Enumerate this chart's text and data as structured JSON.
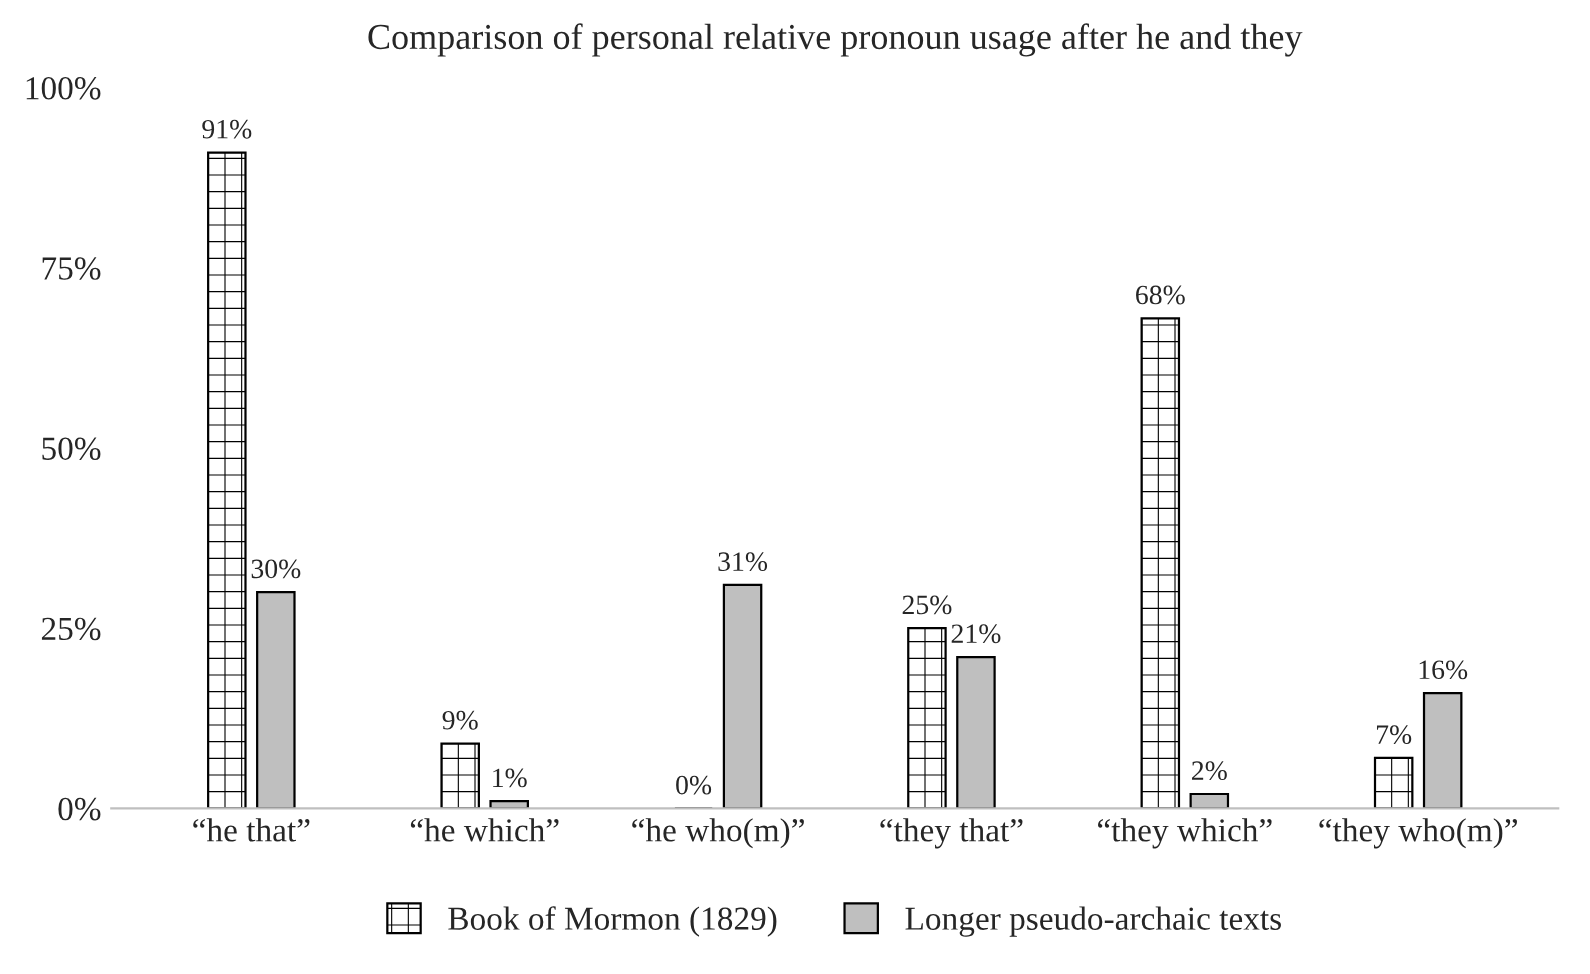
{
  "chart_data": {
    "type": "bar",
    "title": "Comparison of personal relative pronoun usage after he and they",
    "categories": [
      "“he that”",
      "“he which”",
      "“he who(m)”",
      "“they that”",
      "“they which”",
      "“they who(m)”"
    ],
    "series": [
      {
        "name": "Book of Mormon (1829)",
        "color": "#000000",
        "values": [
          91,
          9,
          0,
          25,
          68,
          7
        ],
        "value_labels": [
          "91%",
          "9%",
          "0%",
          "25%",
          "68%",
          "7%"
        ]
      },
      {
        "name": "Longer pseudo-archaic texts",
        "color": "#bfbfbf",
        "values": [
          30,
          1,
          31,
          21,
          2,
          16
        ],
        "value_labels": [
          "30%",
          "1%",
          "31%",
          "21%",
          "2%",
          "16%"
        ]
      }
    ],
    "ylim": [
      0,
      100
    ],
    "yticks": [
      {
        "value": 0,
        "label": "0%"
      },
      {
        "value": 25,
        "label": "25%"
      },
      {
        "value": 50,
        "label": "50%"
      },
      {
        "value": 75,
        "label": "75%"
      },
      {
        "value": 100,
        "label": "100%"
      }
    ],
    "legend": "bottom",
    "grid": false
  }
}
